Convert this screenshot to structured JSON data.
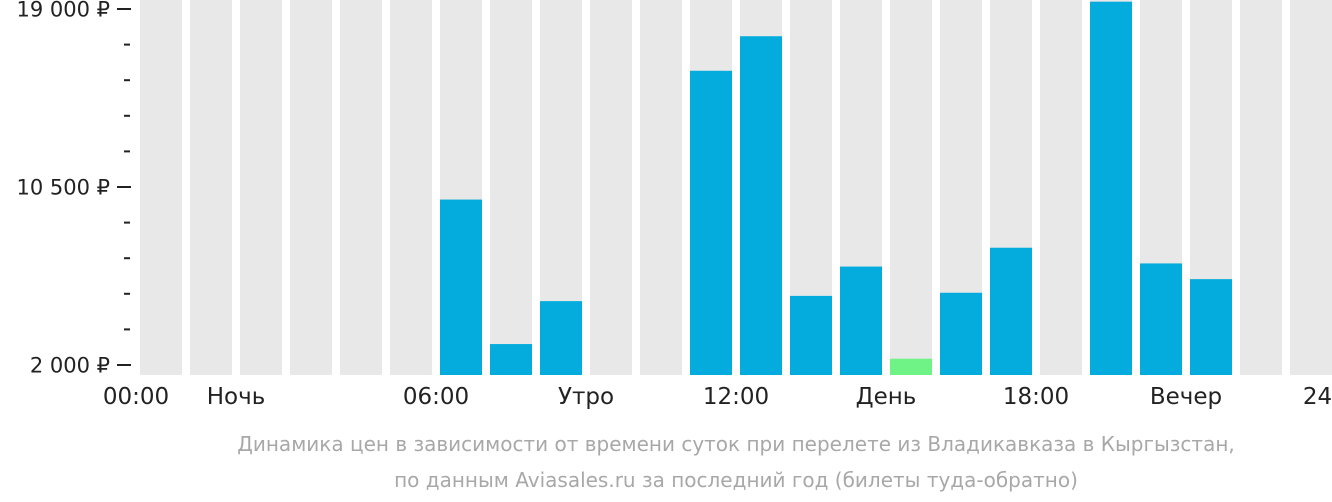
{
  "chart_data": {
    "type": "bar",
    "categories": [
      "00:00",
      "01:00",
      "02:00",
      "03:00",
      "04:00",
      "05:00",
      "06:00",
      "07:00",
      "08:00",
      "09:00",
      "10:00",
      "11:00",
      "12:00",
      "13:00",
      "14:00",
      "15:00",
      "16:00",
      "17:00",
      "18:00",
      "19:00",
      "20:00",
      "21:00",
      "22:00",
      "23:00"
    ],
    "values": [
      null,
      null,
      null,
      null,
      null,
      null,
      9900,
      3000,
      5050,
      null,
      null,
      16050,
      17700,
      5300,
      6700,
      2300,
      5450,
      7600,
      null,
      19350,
      6850,
      6100,
      null,
      null
    ],
    "highlight_index": 15,
    "ylim": [
      2000,
      19000
    ],
    "yticks": [
      {
        "value": 19000,
        "label": "19 000 ₽"
      },
      {
        "value": 10500,
        "label": "10 500 ₽"
      },
      {
        "value": 2000,
        "label": "2 000 ₽"
      }
    ],
    "minor_ticks_between": 4,
    "xtick_labels": [
      {
        "pos": 0,
        "label": "00:00"
      },
      {
        "pos": 2,
        "label": "Ночь"
      },
      {
        "pos": 6,
        "label": "06:00"
      },
      {
        "pos": 9,
        "label": "Утро"
      },
      {
        "pos": 12,
        "label": "12:00"
      },
      {
        "pos": 15,
        "label": "День"
      },
      {
        "pos": 18,
        "label": "18:00"
      },
      {
        "pos": 21,
        "label": "Вечер"
      },
      {
        "pos": 24,
        "label": "24:00"
      }
    ],
    "colors": {
      "bar": "#03acdc",
      "highlight": "#6ff386",
      "background_column": "#e8e8e8",
      "axis_text": "#222222",
      "caption": "#a8a8a8"
    }
  },
  "caption": {
    "line1": "Динамика цен в зависимости от времени суток при перелете из Владикавказа в Кыргызстан,",
    "line2": "по данным Aviasales.ru за последний год (билеты туда-обратно)"
  }
}
